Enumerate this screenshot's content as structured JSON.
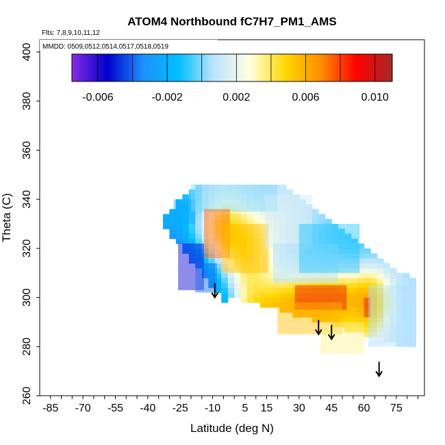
{
  "chart_data": {
    "type": "heatmap",
    "title": "ATOM4 Northbound fC7H7_PM1_AMS",
    "annotations": [
      "Flts: 7,8,9,10,11,12",
      "MMDD: 0509,0512,0514,0517,0518,0519"
    ],
    "xlabel": "Latitude (deg N)",
    "ylabel": "Theta (C)",
    "xlim": [
      -90,
      88
    ],
    "ylim": [
      260,
      405
    ],
    "x_ticks": [
      -85,
      -70,
      -55,
      -40,
      -25,
      -10,
      5,
      15,
      30,
      45,
      60,
      75
    ],
    "x_tick_labels": [
      "-85",
      "-70",
      "-55",
      "-40",
      "-25",
      "-10",
      "5",
      "15",
      "30",
      "45",
      "60",
      "75"
    ],
    "y_ticks": [
      260,
      280,
      300,
      320,
      340,
      360,
      380,
      400
    ],
    "y_tick_labels": [
      "260",
      "280",
      "300",
      "320",
      "340",
      "360",
      "380",
      "400"
    ],
    "colorbar": {
      "range": [
        -0.0075,
        0.011
      ],
      "tick_values": [
        -0.006,
        -0.002,
        0.002,
        0.006,
        0.01
      ],
      "tick_labels": [
        "-0.006",
        "-0.002",
        "0.002",
        "0.006",
        "0.010"
      ],
      "colors": [
        "#8A2BE2",
        "#0000CD",
        "#1E90FF",
        "#00BFFF",
        "#BFE4FF",
        "#FFFFE0",
        "#FFD700",
        "#FF8C00",
        "#FF0000",
        "#A52A2A"
      ]
    },
    "arrows": [
      {
        "lat": -9,
        "theta": 300
      },
      {
        "lat": 39,
        "theta": 285
      },
      {
        "lat": 45,
        "theta": 283
      },
      {
        "lat": 67,
        "theta": 268
      }
    ],
    "regions": [
      {
        "lat": [
          -26,
          -14
        ],
        "theta": [
          303,
          322
        ],
        "value": -0.0055
      },
      {
        "lat": [
          -18,
          -8
        ],
        "theta": [
          302,
          314
        ],
        "value": -0.004
      },
      {
        "lat": [
          -28,
          -18
        ],
        "theta": [
          330,
          340
        ],
        "value": -0.0025
      },
      {
        "lat": [
          -20,
          20
        ],
        "theta": [
          335,
          346
        ],
        "value": 0.0
      },
      {
        "lat": [
          -14,
          -2
        ],
        "theta": [
          316,
          336
        ],
        "value": 0.0075
      },
      {
        "lat": [
          -6,
          16
        ],
        "theta": [
          310,
          330
        ],
        "value": 0.0055
      },
      {
        "lat": [
          14,
          36
        ],
        "theta": [
          320,
          342
        ],
        "value": 0.0015
      },
      {
        "lat": [
          18,
          48
        ],
        "theta": [
          306,
          322
        ],
        "value": 0.0005
      },
      {
        "lat": [
          30,
          58
        ],
        "theta": [
          310,
          330
        ],
        "value": -0.001
      },
      {
        "lat": [
          28,
          52
        ],
        "theta": [
          295,
          305
        ],
        "value": 0.0095
      },
      {
        "lat": [
          20,
          50
        ],
        "theta": [
          285,
          298
        ],
        "value": 0.0055
      },
      {
        "lat": [
          40,
          60
        ],
        "theta": [
          277,
          290
        ],
        "value": 0.0035
      },
      {
        "lat": [
          60,
          63
        ],
        "theta": [
          292,
          300
        ],
        "value": 0.0095
      },
      {
        "lat": [
          62,
          82
        ],
        "theta": [
          280,
          305
        ],
        "value": 0.0005
      }
    ]
  }
}
